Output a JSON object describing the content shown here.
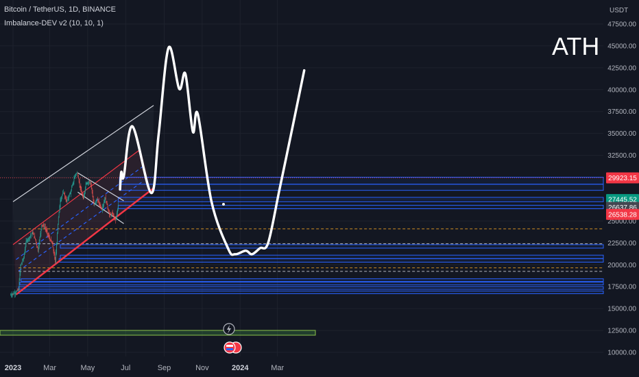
{
  "header": {
    "symbol": "Bitcoin / TetherUS, 1D, BINANCE",
    "indicator": "Imbalance-DEV v2 (10, 10, 1)"
  },
  "currency": "USDT",
  "annotation": "ATH",
  "colors": {
    "background": "#131722",
    "candle_up": "#26a69a",
    "candle_down": "#ef5350",
    "channel_white": "#d1d4dc",
    "channel_red": "#f23645",
    "channel_dash": "#2962ff",
    "zone_blue": "#2962ff",
    "drawing": "#ffffff"
  },
  "chart_data": {
    "type": "candlestick",
    "title": "Bitcoin / TetherUS, 1D, BINANCE",
    "ylabel": "USDT",
    "ylim": [
      9500,
      48800
    ],
    "y_ticks": [
      10000,
      12500,
      15000,
      17500,
      20000,
      22500,
      25000,
      27500,
      30000,
      32500,
      35000,
      37500,
      40000,
      42500,
      45000,
      47500
    ],
    "y_tick_labels": [
      "10000.00",
      "12500.00",
      "15000.00",
      "17500.00",
      "20000.00",
      "22500.00",
      "25000.00",
      "27500.00",
      "30000.00",
      "32500.00",
      "35000.00",
      "37500.00",
      "40000.00",
      "42500.00",
      "45000.00",
      "47500.00"
    ],
    "x_tick_labels": [
      {
        "label": "2023",
        "date": "2023-01-01",
        "bold": true
      },
      {
        "label": "Mar",
        "date": "2023-03-01",
        "bold": false
      },
      {
        "label": "May",
        "date": "2023-05-01",
        "bold": false
      },
      {
        "label": "Jul",
        "date": "2023-07-01",
        "bold": false
      },
      {
        "label": "Sep",
        "date": "2023-09-01",
        "bold": false
      },
      {
        "label": "Nov",
        "date": "2023-11-01",
        "bold": false
      },
      {
        "label": "2024",
        "date": "2024-01-01",
        "bold": true
      },
      {
        "label": "Mar",
        "date": "2024-03-01",
        "bold": false
      }
    ],
    "price_labels": [
      {
        "value": 29923.15,
        "text": "29923.15",
        "color": "#f23645"
      },
      {
        "value": 27445.52,
        "text": "27445.52",
        "color": "#089981"
      },
      {
        "value": 26637.86,
        "text": "26637.86",
        "color": "#434651"
      },
      {
        "value": 26538.28,
        "text": "26538.28",
        "color": "#f23645"
      }
    ],
    "close_series": [
      {
        "date": "2022-12-28",
        "close": 16550
      },
      {
        "date": "2023-01-05",
        "close": 16830
      },
      {
        "date": "2023-01-10",
        "close": 17200
      },
      {
        "date": "2023-01-13",
        "close": 19900
      },
      {
        "date": "2023-01-18",
        "close": 20800
      },
      {
        "date": "2023-01-22",
        "close": 22700
      },
      {
        "date": "2023-01-27",
        "close": 23100
      },
      {
        "date": "2023-02-01",
        "close": 23700
      },
      {
        "date": "2023-02-06",
        "close": 22900
      },
      {
        "date": "2023-02-10",
        "close": 21600
      },
      {
        "date": "2023-02-16",
        "close": 24600
      },
      {
        "date": "2023-02-21",
        "close": 24300
      },
      {
        "date": "2023-02-28",
        "close": 23100
      },
      {
        "date": "2023-03-05",
        "close": 22400
      },
      {
        "date": "2023-03-10",
        "close": 20300
      },
      {
        "date": "2023-03-14",
        "close": 24700
      },
      {
        "date": "2023-03-18",
        "close": 27400
      },
      {
        "date": "2023-03-23",
        "close": 28300
      },
      {
        "date": "2023-03-28",
        "close": 27200
      },
      {
        "date": "2023-04-03",
        "close": 28200
      },
      {
        "date": "2023-04-11",
        "close": 30300
      },
      {
        "date": "2023-04-14",
        "close": 30500
      },
      {
        "date": "2023-04-19",
        "close": 28800
      },
      {
        "date": "2023-04-24",
        "close": 27500
      },
      {
        "date": "2023-04-28",
        "close": 29300
      },
      {
        "date": "2023-05-05",
        "close": 29500
      },
      {
        "date": "2023-05-11",
        "close": 26900
      },
      {
        "date": "2023-05-17",
        "close": 27400
      },
      {
        "date": "2023-05-24",
        "close": 26300
      },
      {
        "date": "2023-05-29",
        "close": 27700
      },
      {
        "date": "2023-06-05",
        "close": 25700
      },
      {
        "date": "2023-06-10",
        "close": 25800
      },
      {
        "date": "2023-06-15",
        "close": 25100
      },
      {
        "date": "2023-06-19",
        "close": 26800
      }
    ],
    "projected_path": [
      {
        "date": "2023-06-22",
        "price": 28600
      },
      {
        "date": "2023-06-24",
        "price": 30600
      },
      {
        "date": "2023-06-28",
        "price": 30100
      },
      {
        "date": "2023-07-12",
        "price": 35800
      },
      {
        "date": "2023-08-11",
        "price": 28200
      },
      {
        "date": "2023-08-23",
        "price": 34900
      },
      {
        "date": "2023-09-08",
        "price": 44800
      },
      {
        "date": "2023-09-25",
        "price": 40100
      },
      {
        "date": "2023-10-05",
        "price": 41800
      },
      {
        "date": "2023-10-17",
        "price": 35200
      },
      {
        "date": "2023-10-25",
        "price": 37200
      },
      {
        "date": "2023-11-16",
        "price": 27200
      },
      {
        "date": "2023-12-13",
        "price": 21800
      },
      {
        "date": "2023-12-24",
        "price": 21200
      },
      {
        "date": "2024-01-10",
        "price": 21600
      },
      {
        "date": "2024-01-20",
        "price": 21200
      },
      {
        "date": "2024-02-02",
        "price": 21900
      },
      {
        "date": "2024-02-15",
        "price": 22500
      },
      {
        "date": "2024-03-04",
        "price": 28500
      },
      {
        "date": "2024-03-26",
        "price": 36000
      },
      {
        "date": "2024-04-13",
        "price": 42200
      }
    ],
    "horizontal_levels": [
      {
        "value": 29923.15,
        "style": "dotted",
        "color": "#f23645"
      },
      {
        "value": 24100,
        "style": "dashed",
        "color": "#f5a623"
      },
      {
        "value": 22400,
        "style": "dashed",
        "color": "#d1d4dc"
      },
      {
        "value": 19650,
        "style": "dashed",
        "color": "#f5a623"
      },
      {
        "value": 19250,
        "style": "dashed",
        "color": "#d1d4dc"
      }
    ],
    "imbalance_zones": [
      {
        "from": "2023-06-21",
        "low": 29200,
        "high": 30000
      },
      {
        "from": "2023-06-21",
        "low": 28500,
        "high": 29200
      },
      {
        "from": "2023-06-19",
        "low": 27200,
        "high": 27700
      },
      {
        "from": "2023-06-19",
        "low": 26400,
        "high": 26800
      },
      {
        "from": "2023-03-18",
        "low": 21900,
        "high": 22300
      },
      {
        "from": "2023-03-18",
        "low": 20700,
        "high": 21100
      },
      {
        "from": "2023-03-16",
        "low": 20300,
        "high": 20700
      },
      {
        "from": "2023-01-14",
        "low": 18100,
        "high": 18400
      },
      {
        "from": "2023-01-12",
        "low": 17700,
        "high": 18000
      },
      {
        "from": "2023-01-10",
        "low": 17200,
        "high": 17500
      },
      {
        "from": "2023-01-10",
        "low": 16700,
        "high": 17000
      }
    ],
    "trend_lines": [
      {
        "name": "",
        "color": "#d1d4dc",
        "style": "solid",
        "from": {
          "date": "2023-01-01",
          "price": 27200
        },
        "to": {
          "date": "2023-08-15",
          "price": 38200
        }
      },
      {
        "name": "",
        "color": "#f23645",
        "style": "solid",
        "from": {
          "date": "2023-01-01",
          "price": 22300
        },
        "to": {
          "date": "2023-07-25",
          "price": 33200
        }
      },
      {
        "name": "",
        "color": "#2962ff",
        "style": "dashed",
        "from": {
          "date": "2023-01-06",
          "price": 20600
        },
        "to": {
          "date": "2023-08-01",
          "price": 31400
        }
      },
      {
        "name": "",
        "color": "#2962ff",
        "style": "dashed",
        "from": {
          "date": "2023-01-10",
          "price": 19300
        },
        "to": {
          "date": "2023-07-30",
          "price": 29600
        }
      },
      {
        "name": "",
        "color": "#f23645",
        "style": "solid",
        "from": {
          "date": "2023-01-06",
          "price": 16600
        },
        "to": {
          "date": "2023-08-14",
          "price": 28700
        }
      },
      {
        "name": "",
        "color": "#d1d4dc",
        "style": "solid",
        "from": {
          "date": "2023-04-15",
          "price": 30500
        },
        "to": {
          "date": "2023-06-28",
          "price": 27300
        }
      },
      {
        "name": "",
        "color": "#d1d4dc",
        "style": "solid",
        "from": {
          "date": "2023-04-15",
          "price": 28300
        },
        "to": {
          "date": "2023-06-28",
          "price": 24700
        }
      }
    ],
    "grid": true
  }
}
